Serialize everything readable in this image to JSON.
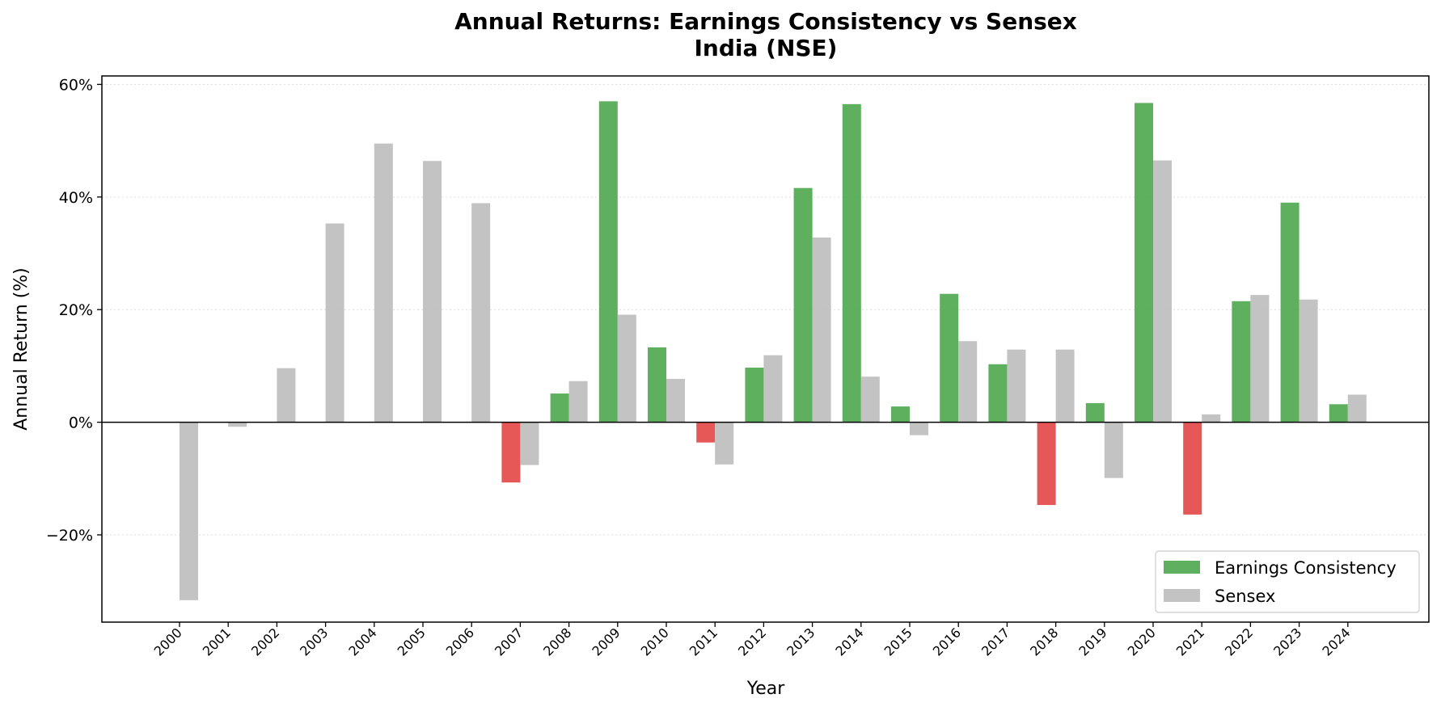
{
  "chart_data": {
    "type": "bar",
    "title": "Annual Returns: Earnings Consistency vs Sensex",
    "subtitle": "India (NSE)",
    "xlabel": "Year",
    "ylabel": "Annual Return (%)",
    "ylim": [
      -35.5,
      61.5
    ],
    "yticks": [
      -20,
      0,
      20,
      40,
      60
    ],
    "ytick_labels": [
      "−20%",
      "0%",
      "20%",
      "40%",
      "60%"
    ],
    "grid": "horizontal-dotted",
    "legend_position": "bottom-right",
    "categories": [
      "2000",
      "2001",
      "2002",
      "2003",
      "2004",
      "2005",
      "2006",
      "2007",
      "2008",
      "2009",
      "2010",
      "2011",
      "2012",
      "2013",
      "2014",
      "2015",
      "2016",
      "2017",
      "2018",
      "2019",
      "2020",
      "2021",
      "2022",
      "2023",
      "2024"
    ],
    "series": [
      {
        "name": "Earnings Consistency",
        "color": "#4ca64c",
        "negative_color": "#e34545",
        "values": [
          null,
          null,
          null,
          null,
          null,
          null,
          null,
          -10.7,
          5.1,
          57.0,
          13.3,
          -3.6,
          9.7,
          41.6,
          56.5,
          2.8,
          22.8,
          10.3,
          -14.7,
          3.4,
          56.7,
          -16.4,
          21.5,
          39.0,
          3.2
        ]
      },
      {
        "name": "Sensex",
        "color": "#bdbdbd",
        "values": [
          -31.6,
          -0.8,
          9.6,
          35.3,
          49.5,
          46.4,
          38.9,
          -7.6,
          7.3,
          19.1,
          7.7,
          -7.5,
          11.9,
          32.8,
          8.1,
          -2.3,
          14.4,
          12.9,
          12.9,
          -9.9,
          46.5,
          1.4,
          22.6,
          21.8,
          4.9
        ]
      }
    ]
  }
}
